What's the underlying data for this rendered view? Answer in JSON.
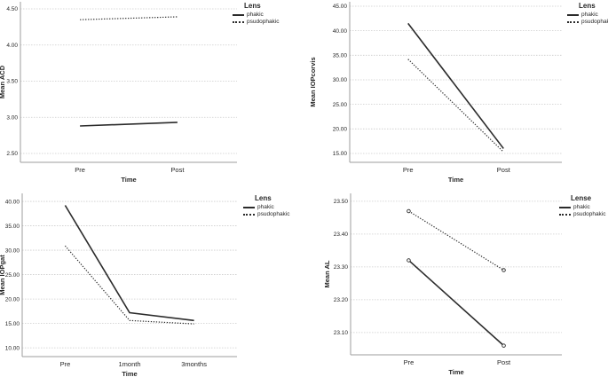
{
  "colors": {
    "background": "#ffffff",
    "line": "#2b2b2b",
    "grid": "#cccccc",
    "axis": "#9e9e9e",
    "text": "#262626"
  },
  "chart_data": [
    {
      "type": "line",
      "panel": "top-left",
      "title": "",
      "ylabel": "Mean ACD",
      "xlabel": "Time",
      "categories": [
        "Pre",
        "Post"
      ],
      "yticks": [
        2.5,
        3.0,
        3.5,
        4.0,
        4.5
      ],
      "ytick_labels": [
        "2.50",
        "3.00",
        "3.50",
        "4.00",
        "4.50"
      ],
      "ylim": [
        2.377,
        4.598
      ],
      "grid": true,
      "markers": false,
      "legend_title": "Lens",
      "legend_position": "top-right",
      "series": [
        {
          "name": "phakic",
          "line_style": "solid",
          "values": [
            2.88,
            2.93
          ]
        },
        {
          "name": "psudophakic",
          "line_style": "dotted",
          "values": [
            4.35,
            4.39
          ]
        }
      ]
    },
    {
      "type": "line",
      "panel": "top-right",
      "title": "",
      "ylabel": "Mean IOPcorvis",
      "xlabel": "Time",
      "categories": [
        "Pre",
        "Post"
      ],
      "yticks": [
        15,
        20,
        25,
        30,
        35,
        40,
        45
      ],
      "ytick_labels": [
        "15.00",
        "20.00",
        "25.00",
        "30.00",
        "35.00",
        "40.00",
        "45.00"
      ],
      "ylim": [
        13.19,
        45.9
      ],
      "grid": true,
      "markers": false,
      "legend_title": "Lens",
      "legend_position": "top-right",
      "series": [
        {
          "name": "phakic",
          "line_style": "solid",
          "values": [
            41.5,
            16.0
          ]
        },
        {
          "name": "psudophakic",
          "line_style": "dotted",
          "values": [
            34.2,
            15.3
          ]
        }
      ]
    },
    {
      "type": "line",
      "panel": "bottom-left",
      "title": "",
      "ylabel": "Mean IOPgat",
      "xlabel": "Time",
      "categories": [
        "Pre",
        "1month",
        "3months"
      ],
      "yticks": [
        10,
        15,
        20,
        25,
        30,
        35,
        40
      ],
      "ytick_labels": [
        "10.00",
        "15.00",
        "20.00",
        "25.00",
        "30.00",
        "35.00",
        "40.00"
      ],
      "ylim": [
        8.2,
        41.65
      ],
      "grid": true,
      "markers": false,
      "legend_title": "Lens",
      "legend_position": "top-right",
      "series": [
        {
          "name": "phakic",
          "line_style": "solid",
          "values": [
            39.2,
            17.2,
            15.6
          ]
        },
        {
          "name": "psudophakic",
          "line_style": "dotted",
          "values": [
            30.9,
            15.6,
            14.9
          ]
        }
      ]
    },
    {
      "type": "line",
      "panel": "bottom-right",
      "title": "",
      "ylabel": "Mean AL",
      "xlabel": "Time",
      "categories": [
        "Pre",
        "Post"
      ],
      "yticks": [
        23.1,
        23.2,
        23.3,
        23.4,
        23.5
      ],
      "ytick_labels": [
        "23.10",
        "23.20",
        "23.30",
        "23.40",
        "23.50"
      ],
      "ylim": [
        23.032,
        23.524
      ],
      "grid": true,
      "markers": true,
      "legend_title": "Lense",
      "legend_position": "top-right",
      "series": [
        {
          "name": "phakic",
          "line_style": "solid",
          "values": [
            23.32,
            23.06
          ]
        },
        {
          "name": "psudophakic",
          "line_style": "dotted",
          "values": [
            23.47,
            23.29
          ]
        }
      ]
    }
  ]
}
